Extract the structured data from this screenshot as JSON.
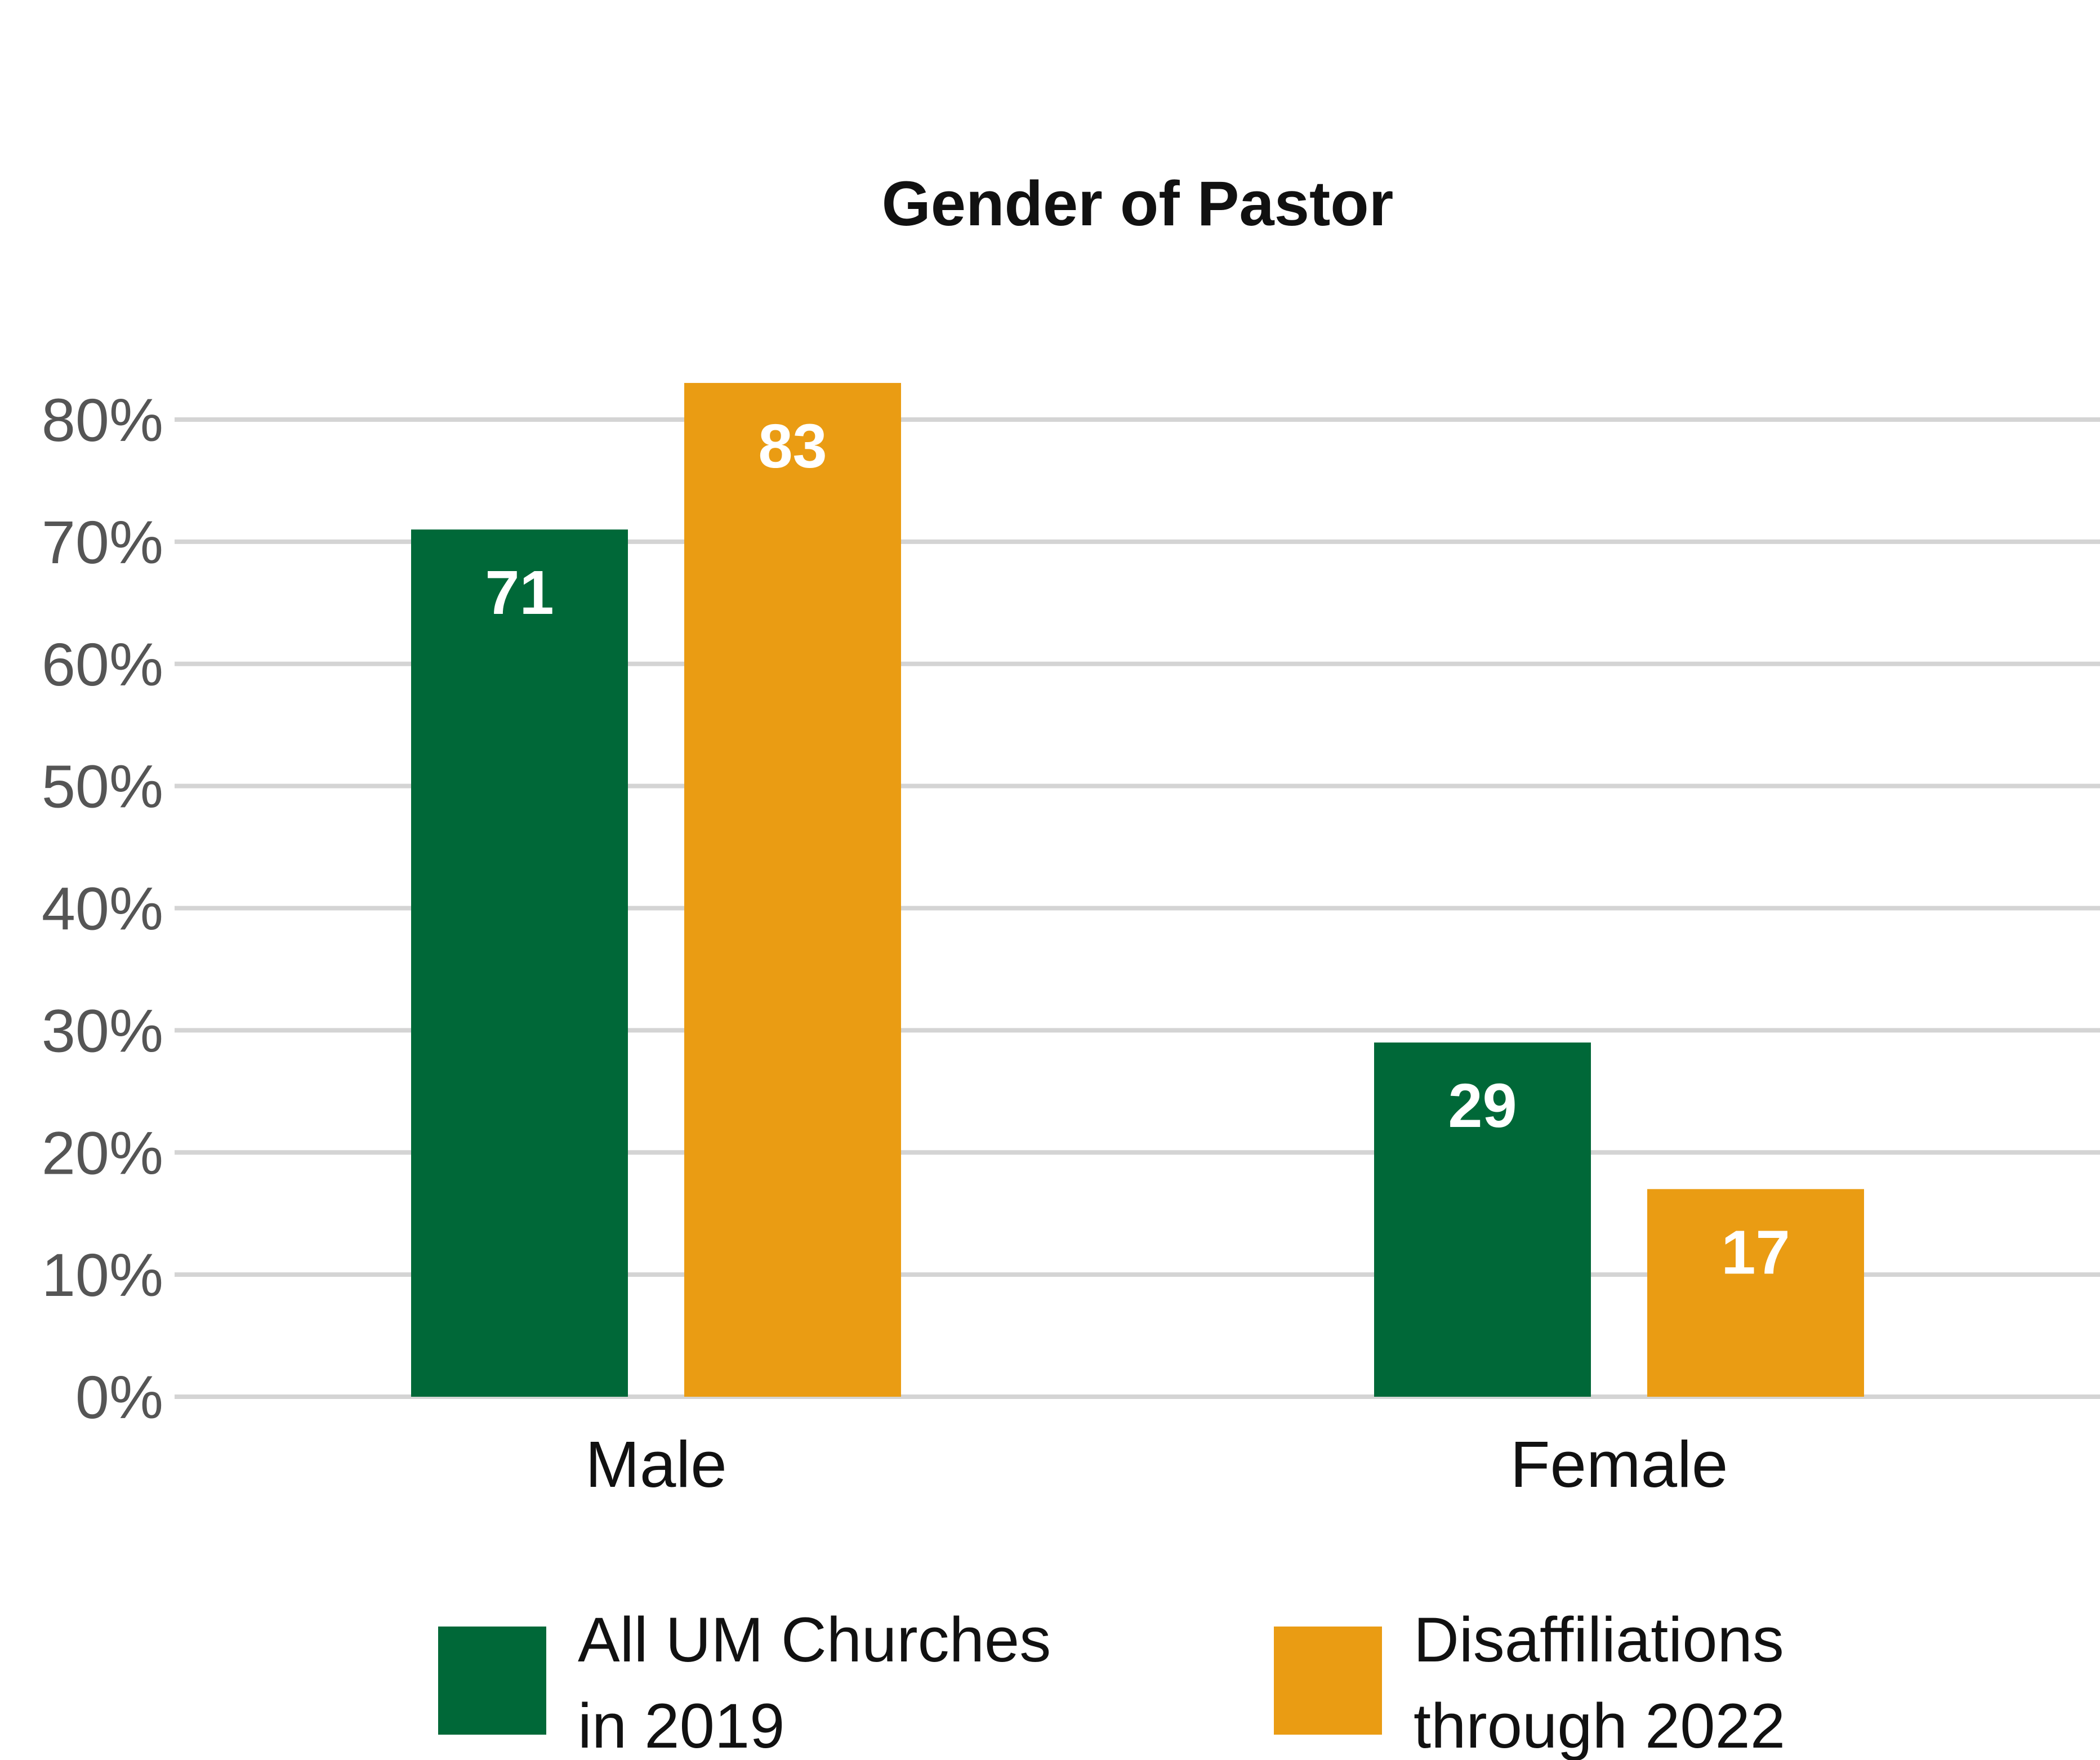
{
  "chart_data": {
    "type": "bar",
    "title": "Gender of Pastor",
    "categories": [
      "Male",
      "Female"
    ],
    "series": [
      {
        "name_lines": [
          "All UM Churches",
          "in 2019"
        ],
        "color": "#006838",
        "values": [
          71,
          29
        ]
      },
      {
        "name_lines": [
          "Disaffiliations",
          "through 2022"
        ],
        "color": "#EA9C13",
        "values": [
          83,
          17
        ]
      }
    ],
    "y_ticks": [
      "0%",
      "10%",
      "20%",
      "30%",
      "40%",
      "50%",
      "60%",
      "70%",
      "80%"
    ],
    "ylim": [
      0,
      80
    ],
    "grid": true,
    "legend_position": "bottom"
  }
}
